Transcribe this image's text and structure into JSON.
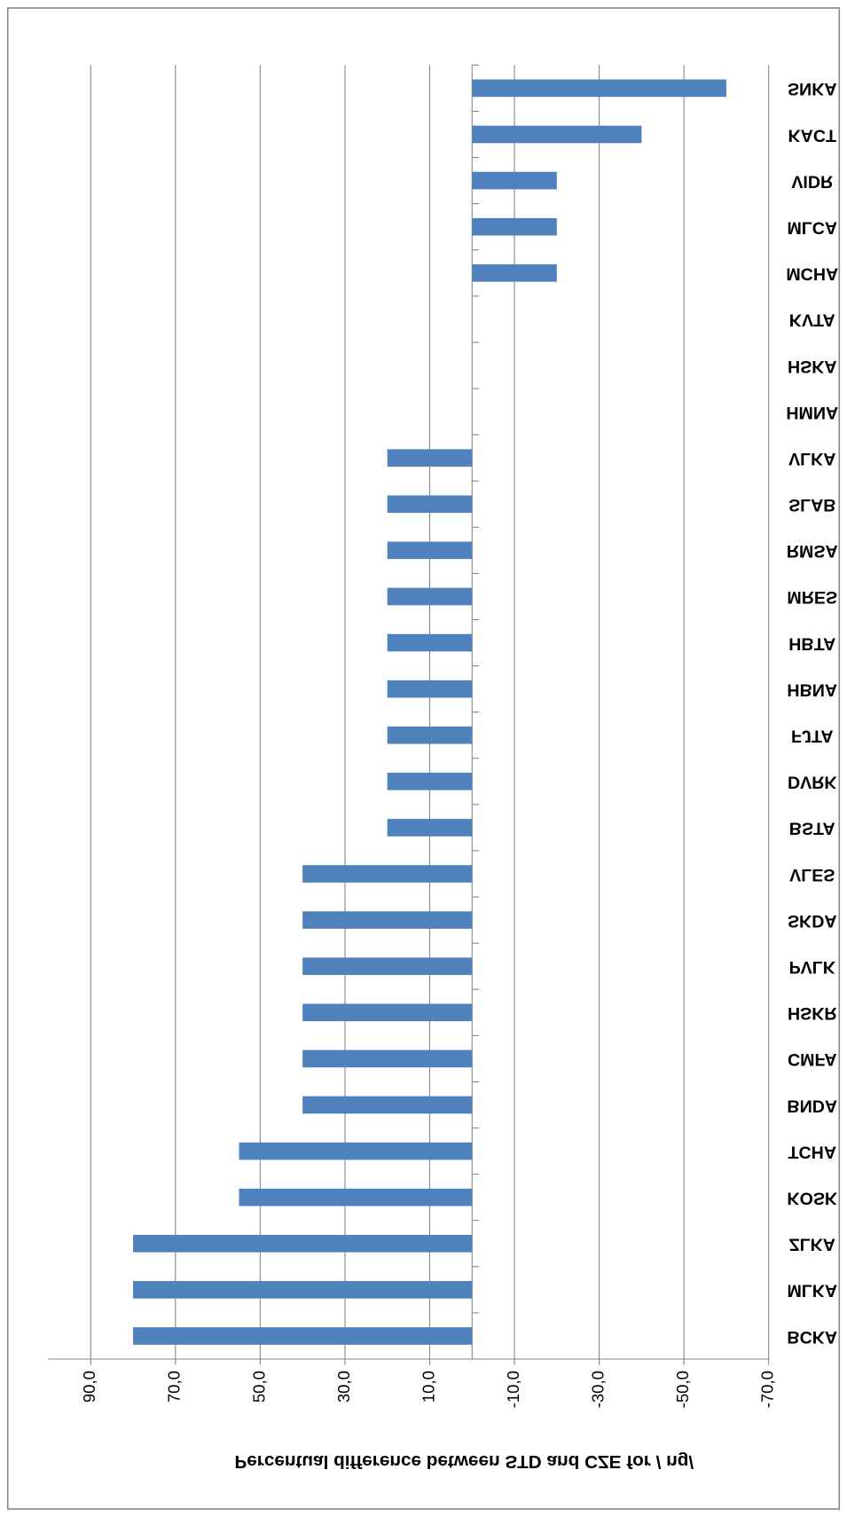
{
  "chart_data": {
    "type": "bar",
    "orientation": "horizontal",
    "x_label": "Percentual difference between STD and CZE for / ng/",
    "categories": [
      "SNKA",
      "KACT",
      "VIDR",
      "MLCA",
      "MCHA",
      "KVTA",
      "HSKA",
      "HMNA",
      "VLKA",
      "SLAB",
      "RMSA",
      "MRES",
      "HBTA",
      "HBNA",
      "FJTA",
      "DVRK",
      "BSTA",
      "VLES",
      "SKDA",
      "PVLK",
      "HSKR",
      "CMFA",
      "BNDA",
      "TCHA",
      "KOSK",
      "ZLKA",
      "MLKA",
      "BCKA"
    ],
    "values": [
      -60,
      -40,
      -20,
      -20,
      -20,
      0,
      0,
      0,
      20,
      20,
      20,
      20,
      20,
      20,
      20,
      20,
      20,
      40,
      40,
      40,
      40,
      40,
      40,
      55,
      55,
      80,
      80,
      80
    ],
    "color": "#4f81bd",
    "xlim": [
      100,
      -70
    ],
    "xticks": [
      {
        "value": 90,
        "label": "90,0"
      },
      {
        "value": 70,
        "label": "70,0"
      },
      {
        "value": 50,
        "label": "50,0"
      },
      {
        "value": 30,
        "label": "30,0"
      },
      {
        "value": 10,
        "label": "10,0"
      },
      {
        "value": -10,
        "label": "-10,0"
      },
      {
        "value": -30,
        "label": "-30,0"
      },
      {
        "value": -50,
        "label": "-50,0"
      },
      {
        "value": -70,
        "label": "-70,0"
      }
    ],
    "grid": true
  }
}
